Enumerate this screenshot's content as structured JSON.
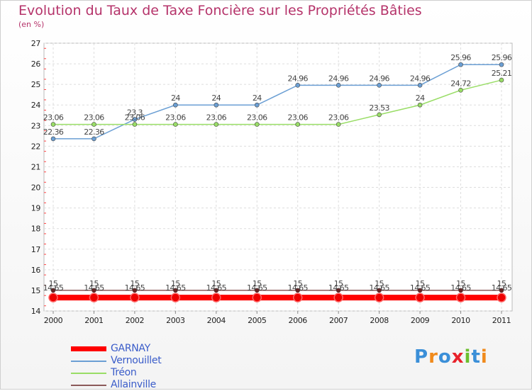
{
  "chart_data": {
    "type": "line",
    "title": "Evolution du Taux de Taxe Foncière sur les Propriétés Bâties",
    "ylabel": "(en %)",
    "xlabel": "",
    "categories": [
      "2000",
      "2001",
      "2002",
      "2003",
      "2004",
      "2005",
      "2006",
      "2007",
      "2008",
      "2009",
      "2010",
      "2011"
    ],
    "ylim": [
      14,
      27
    ],
    "yticks": [
      "14",
      "15",
      "16",
      "17",
      "18",
      "19",
      "20",
      "21",
      "22",
      "23",
      "24",
      "25",
      "26",
      "27"
    ],
    "grid": true,
    "legend_position": "bottom-left",
    "series": [
      {
        "name": "GARNAY",
        "color": "#ff0000",
        "values": [
          14.65,
          14.65,
          14.65,
          14.65,
          14.65,
          14.65,
          14.65,
          14.65,
          14.65,
          14.65,
          14.65,
          14.65
        ],
        "labels": [
          "",
          "",
          "",
          "",
          "",
          "",
          "",
          "",
          "",
          "",
          "",
          ""
        ]
      },
      {
        "name": "Vernouillet",
        "color": "#6b9fd4",
        "values": [
          22.36,
          22.36,
          23.3,
          24,
          24,
          24,
          24.96,
          24.96,
          24.96,
          24.96,
          25.96,
          25.96
        ],
        "labels": [
          "22.36",
          "22.36",
          "23.3",
          "24",
          "24",
          "24",
          "24.96",
          "24.96",
          "24.96",
          "24.96",
          "25.96",
          "25.96"
        ]
      },
      {
        "name": "Tréon",
        "color": "#99dd66",
        "values": [
          23.06,
          23.06,
          23.06,
          23.06,
          23.06,
          23.06,
          23.06,
          23.06,
          23.53,
          24,
          24.72,
          25.21
        ],
        "labels": [
          "23.06",
          "23.06",
          "23.06",
          "23.06",
          "23.06",
          "23.06",
          "23.06",
          "23.06",
          "23.53",
          "24",
          "24.72",
          "25.21"
        ]
      },
      {
        "name": "Allainville",
        "color": "#8b5a5a",
        "values": [
          15,
          15,
          15,
          15,
          15,
          15,
          15,
          15,
          15,
          15,
          15,
          15
        ],
        "labels": [
          "15",
          "15",
          "15",
          "15",
          "15",
          "15",
          "15",
          "15",
          "15",
          "15",
          "15",
          "15"
        ]
      }
    ],
    "extra_labels": [
      "14.65",
      "14.65",
      "14.65",
      "14.65",
      "14.65",
      "14.65",
      "14.65",
      "14.65",
      "14.65",
      "14.65",
      "14.65",
      "14.65"
    ]
  },
  "logo": {
    "text": "Proxiti"
  }
}
